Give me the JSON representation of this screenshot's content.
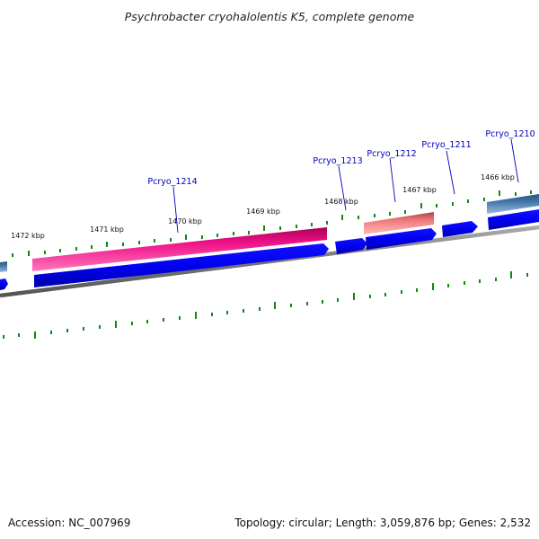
{
  "title": "Psychrobacter cryohalolentis K5, complete genome",
  "footer": {
    "accession": "Accession: NC_007969",
    "summary": "Topology: circular; Length: 3,059,876 bp; Genes: 2,532"
  },
  "ticks": [
    "1472 kbp",
    "1471 kbp",
    "1470 kbp",
    "1469 kbp",
    "1468 kbp",
    "1467 kbp",
    "1466 kbp"
  ],
  "gene_labels": [
    "Pcryo_1214",
    "Pcryo_1213",
    "Pcryo_1212",
    "Pcryo_1211",
    "Pcryo_1210"
  ],
  "colors": {
    "cds_blue": "#0000ee",
    "rna_pink": "#ee1188",
    "rna_salmon": "#ee7777",
    "steelblue": "#4477aa",
    "backbone": "#888888",
    "tick_green": "#118811",
    "label_blue": "#0000bb"
  }
}
